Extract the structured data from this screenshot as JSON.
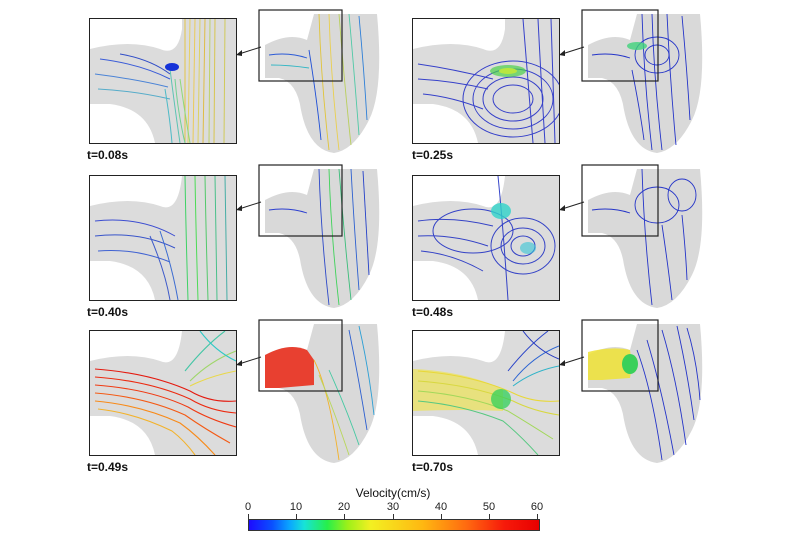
{
  "panels": [
    {
      "time": "t=0.08s"
    },
    {
      "time": "t=0.25s"
    },
    {
      "time": "t=0.40s"
    },
    {
      "time": "t=0.48s"
    },
    {
      "time": "t=0.49s"
    },
    {
      "time": "t=0.70s"
    }
  ],
  "colorbar": {
    "title": "Velocity(cm/s)",
    "ticks": [
      "0",
      "10",
      "20",
      "30",
      "40",
      "50",
      "60"
    ],
    "colors": [
      "#1d0bff",
      "#0aa6ff",
      "#27ef4a",
      "#f3f022",
      "#ffb711",
      "#ff6a10",
      "#e80000"
    ]
  }
}
